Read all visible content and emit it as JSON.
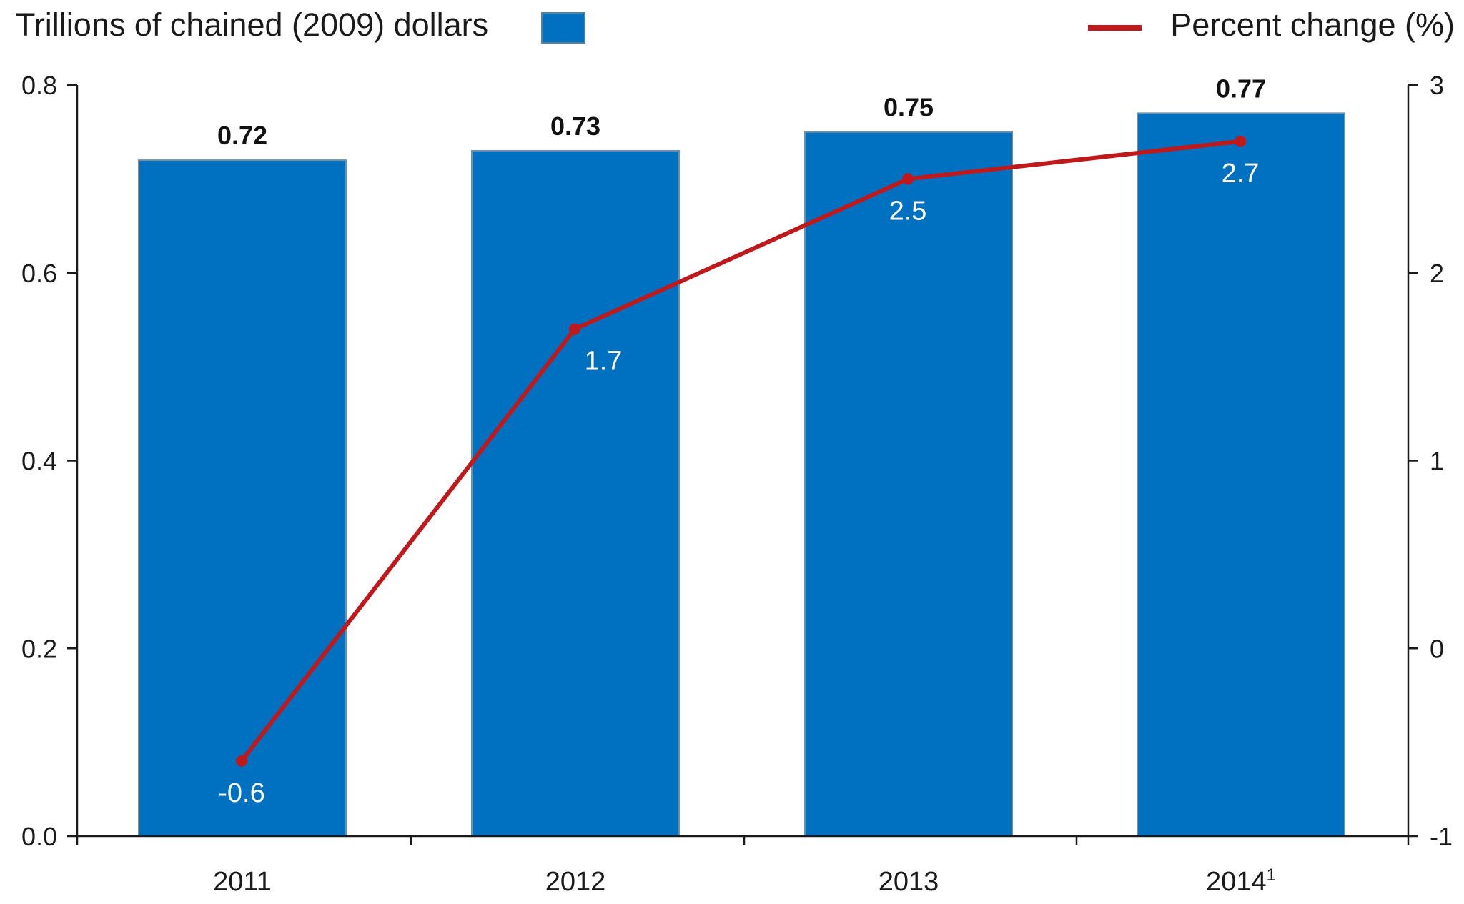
{
  "chart_data": {
    "type": "bar",
    "categories": [
      "2011",
      "2012",
      "2013",
      "2014"
    ],
    "category_footnotes": [
      "",
      "",
      "",
      "1"
    ],
    "series": [
      {
        "name": "Trillions of chained (2009) dollars",
        "type": "bar",
        "axis": "left",
        "values": [
          0.72,
          0.73,
          0.75,
          0.77
        ],
        "value_labels": [
          "0.72",
          "0.73",
          "0.75",
          "0.77"
        ],
        "color": "#0070C0"
      },
      {
        "name": "Percent change (%)",
        "type": "line",
        "axis": "right",
        "values": [
          -0.6,
          1.7,
          2.5,
          2.7
        ],
        "value_labels": [
          "-0.6",
          "1.7",
          "2.5",
          "2.7"
        ],
        "color": "#C0191C"
      }
    ],
    "ylim_left": [
      0,
      0.8
    ],
    "yticks_left": [
      "0.0",
      "0.2",
      "0.4",
      "0.6",
      "0.8"
    ],
    "ylim_right": [
      -1,
      3
    ],
    "yticks_right": [
      "-1",
      "0",
      "1",
      "2",
      "3"
    ],
    "legend_position": "top",
    "grid": false,
    "xlabel": "",
    "ylabel": ""
  }
}
